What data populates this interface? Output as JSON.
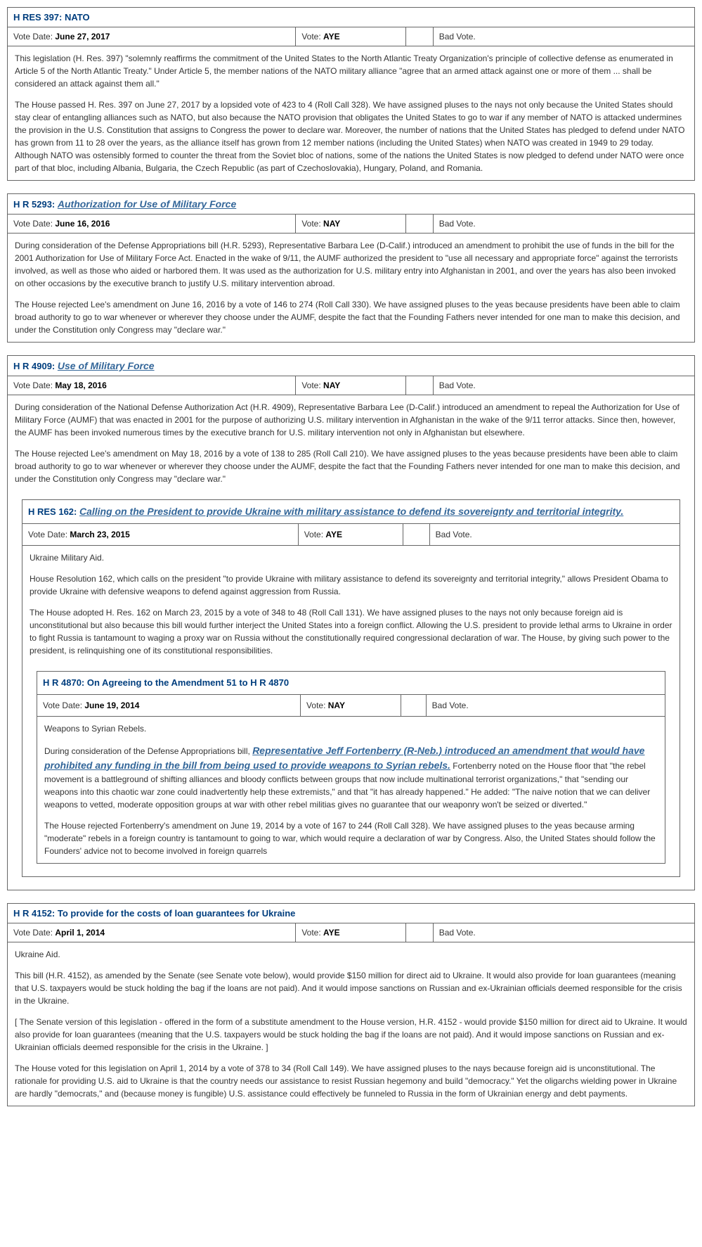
{
  "labels": {
    "voteDate": "Vote Date:",
    "vote": "Vote:"
  },
  "bills": [
    {
      "id": "b0",
      "prefix": "H RES 397: ",
      "titleText": "NATO",
      "titleIsLink": false,
      "voteDate": "June 27, 2017",
      "vote": "AYE",
      "rating": "Bad Vote.",
      "paras": [
        "This legislation (H. Res. 397) \"solemnly reaffirms the commitment of the United States to the North Atlantic Treaty Organization's principle of collective defense as enumerated in Article 5 of the North Atlantic Treaty.\" Under Article 5, the member nations of the NATO military alliance \"agree that an armed attack against one or more of them ... shall be considered an attack against them all.\"",
        "The House passed H. Res. 397 on June 27, 2017 by a lopsided vote of 423 to 4 (Roll Call 328). We have assigned pluses to the nays not only because the United States should stay clear of entangling alliances such as NATO, but also because the NATO provision that obligates the United States to go to war if any member of NATO is attacked undermines the provision in the U.S. Constitution that assigns to Congress the power to declare war. Moreover, the number of nations that the United States has pledged to defend under NATO has grown from 11 to 28 over the years, as the alliance itself has grown from 12 member nations (including the United States) when NATO was created in 1949 to 29 today. Although NATO was ostensibly formed to counter the threat from the Soviet bloc of nations, some of the nations the United States is now pledged to defend under NATO were once part of that bloc, including Albania, Bulgaria, the Czech Republic (as part of Czechoslovakia), Hungary, Poland, and Romania."
      ],
      "nested": []
    },
    {
      "id": "b1",
      "prefix": "H R 5293: ",
      "titleText": "Authorization for Use of Military Force",
      "titleIsLink": true,
      "voteDate": "June 16, 2016",
      "vote": "NAY",
      "rating": "Bad Vote.",
      "paras": [
        "During consideration of the Defense Appropriations bill (H.R. 5293), Representative Barbara Lee (D-Calif.) introduced an amendment to prohibit the use of funds in the bill for the 2001 Authorization for Use of Military Force Act. Enacted in the wake of 9/11, the AUMF authorized the president to \"use all necessary and appropriate force\" against the terrorists involved, as well as those who aided or harbored them. It was used as the authorization for U.S. military entry into Afghanistan in 2001, and over the years has also been invoked on other occasions by the executive branch to justify U.S. military intervention abroad.",
        "The House rejected Lee's amendment on June 16, 2016 by a vote of 146 to 274 (Roll Call 330). We have assigned pluses to the yeas because presidents have been able to claim broad authority to go to war whenever or wherever they choose under the AUMF, despite the fact that the Founding Fathers never intended for one man to make this decision, and under the Constitution only Congress may \"declare war.\""
      ],
      "nested": []
    },
    {
      "id": "b2",
      "prefix": "H R 4909: ",
      "titleText": "Use of Military Force",
      "titleIsLink": true,
      "voteDate": "May 18, 2016",
      "vote": "NAY",
      "rating": "Bad Vote.",
      "paras": [
        "During consideration of the National Defense Authorization Act (H.R. 4909), Representative Barbara Lee (D-Calif.) introduced an amendment to repeal the Authorization for Use of Military Force (AUMF) that was enacted in 2001 for the purpose of authorizing U.S. military intervention in Afghanistan in the wake of the 9/11 terror attacks. Since then, however, the AUMF has been invoked numerous times by the executive branch for U.S. military intervention not only in Afghanistan but elsewhere.",
        "The House rejected Lee's amendment on May 18, 2016 by a vote of 138 to 285 (Roll Call 210). We have assigned pluses to the yeas because presidents have been able to claim broad authority to go to war whenever or wherever they choose under the AUMF, despite the fact that the Founding Fathers never intended for one man to make this decision, and under the Constitution only Congress may \"declare war.\""
      ],
      "nested": [
        {
          "id": "b2n0",
          "prefix": "H RES 162: ",
          "titleText": "Calling on the President to provide Ukraine with military assistance to defend its sovereignty and territorial integrity.",
          "titleIsLink": true,
          "voteDate": "March 23, 2015",
          "vote": "AYE",
          "rating": "Bad Vote.",
          "paras": [
            "Ukraine Military Aid.",
            "House Resolution 162, which calls on the president \"to provide Ukraine with military assistance to defend its sovereignty and territorial integrity,\" allows President Obama to provide Ukraine with defensive weapons to defend against aggression from Russia.",
            "The House adopted H. Res. 162 on March 23, 2015 by a vote of 348 to 48 (Roll Call 131). We have assigned pluses to the nays not only because foreign aid is unconstitutional but also because this bill would further interject the United States into a foreign conflict. Allowing the U.S. president to provide lethal arms to Ukraine in order to fight Russia is tantamount to waging a proxy war on Russia without the constitutionally required congressional declaration of war. The House, by giving such power to the president, is relinquishing one of its constitutional responsibilities."
          ],
          "nested": [
            {
              "id": "b2n0n0",
              "prefix": "H R 4870: ",
              "titleText": "On Agreeing to the Amendment 51 to H R 4870",
              "titleIsLink": false,
              "voteDate": "June 19, 2014",
              "vote": "NAY",
              "rating": "Bad Vote.",
              "mixed": {
                "lead": "Weapons to Syrian Rebels.",
                "pre": "During consideration of the Defense Appropriations bill, ",
                "link": "Representative Jeff Fortenberry (R-Neb.) introduced an amendment that would have prohibited any funding in the bill from being used to provide weapons to Syrian rebels.",
                "post": " Fortenberry noted on the House floor that \"the rebel movement is a battleground of shifting alliances and bloody conflicts between groups that now include multinational terrorist organizations,\" that \"sending our weapons into this chaotic war zone could inadvertently help these extremists,\" and that \"it has already happened.\" He added: \"The naive notion that we can deliver weapons to vetted, moderate opposition groups at war with other rebel militias gives no guarantee that our weaponry won't be seized or diverted.\"",
                "last": "The House rejected Fortenberry's amendment on June 19, 2014 by a vote of 167 to 244 (Roll Call 328). We have assigned pluses to the yeas because arming \"moderate\" rebels in a foreign country is tantamount to going to war, which would require a declaration of war by Congress. Also, the United States should follow the Founders' advice not to become involved in foreign quarrels"
              },
              "nested": []
            }
          ]
        }
      ]
    },
    {
      "id": "b3",
      "prefix": "H R 4152: ",
      "titleText": "To provide for the costs of loan guarantees for Ukraine",
      "titleIsLink": false,
      "voteDate": "April 1, 2014",
      "vote": "AYE",
      "rating": "Bad Vote.",
      "paras": [
        "Ukraine Aid.",
        "This bill (H.R. 4152), as amended by the Senate (see Senate vote below), would provide $150 million for direct aid to Ukraine. It would also provide for loan guarantees (meaning that U.S. taxpayers would be stuck holding the bag if the loans are not paid). And it would impose sanctions on Russian and ex-Ukrainian officials deemed responsible for the crisis in the Ukraine.",
        "[ The Senate version of this legislation - offered in the form of a substitute amendment to the House version, H.R. 4152 - would provide $150 million for direct aid to Ukraine. It would also provide for loan guarantees (meaning that the U.S. taxpayers would be stuck holding the bag if the loans are not paid). And it would impose sanctions on Russian and ex-Ukrainian officials deemed responsible for the crisis in the Ukraine. ]",
        "The House voted for this legislation on April 1, 2014 by a vote of 378 to 34 (Roll Call 149). We have assigned pluses to the nays because foreign aid is unconstitutional. The rationale for providing U.S. aid to Ukraine is that the country needs our assistance to resist Russian hegemony and build \"democracy.\" Yet the oligarchs wielding power in Ukraine are hardly \"democrats,\" and (because money is fungible) U.S. assistance could effectively be funneled to Russia in the form of Ukrainian energy and debt payments."
      ],
      "nested": []
    }
  ]
}
